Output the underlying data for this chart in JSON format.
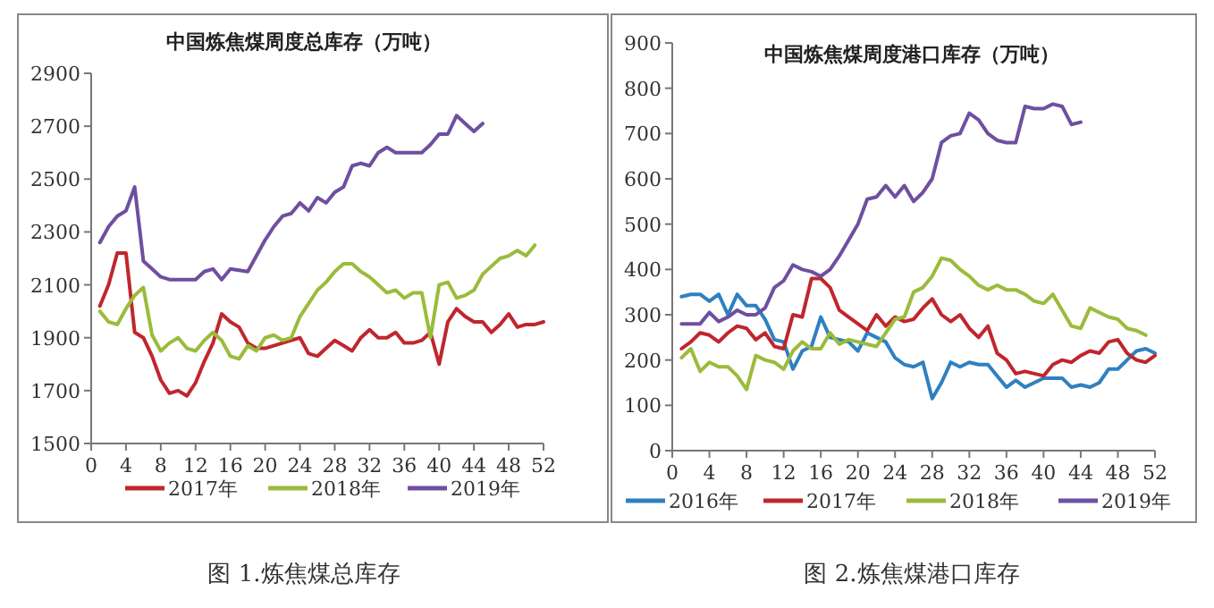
{
  "chart_data": [
    {
      "type": "line",
      "title": "中国炼焦煤周度总库存（万吨）",
      "x": [
        1,
        2,
        3,
        4,
        5,
        6,
        7,
        8,
        9,
        10,
        11,
        12,
        13,
        14,
        15,
        16,
        17,
        18,
        19,
        20,
        21,
        22,
        23,
        24,
        25,
        26,
        27,
        28,
        29,
        30,
        31,
        32,
        33,
        34,
        35,
        36,
        37,
        38,
        39,
        40,
        41,
        42,
        43,
        44,
        45,
        46,
        47,
        48,
        49,
        50,
        51,
        52
      ],
      "xlim": [
        0,
        52
      ],
      "xticks": [
        0,
        4,
        8,
        12,
        16,
        20,
        24,
        28,
        32,
        36,
        40,
        44,
        48,
        52
      ],
      "ylim": [
        1500,
        2900
      ],
      "yticks": [
        1500,
        1700,
        1900,
        2100,
        2300,
        2500,
        2700,
        2900
      ],
      "legend": "bottom",
      "marker": "none",
      "annotations": [
        "图 1.炼焦煤总库存"
      ],
      "series": [
        {
          "name": "2017年",
          "color": "#c0262d",
          "values": [
            2020,
            2100,
            2220,
            2220,
            1920,
            1900,
            1830,
            1740,
            1690,
            1700,
            1680,
            1730,
            1810,
            1880,
            1990,
            1960,
            1940,
            1880,
            1860,
            1860,
            1870,
            1880,
            1890,
            1900,
            1840,
            1830,
            1860,
            1890,
            1870,
            1850,
            1900,
            1930,
            1900,
            1900,
            1920,
            1880,
            1880,
            1890,
            1920,
            1800,
            1960,
            2010,
            1980,
            1960,
            1960,
            1920,
            1950,
            1990,
            1940,
            1950,
            1950,
            1960
          ]
        },
        {
          "name": "2018年",
          "color": "#9bbb3b",
          "values": [
            2000,
            1960,
            1950,
            2010,
            2060,
            2090,
            1910,
            1850,
            1880,
            1900,
            1860,
            1850,
            1890,
            1920,
            1890,
            1830,
            1820,
            1870,
            1850,
            1900,
            1910,
            1890,
            1900,
            1980,
            2030,
            2080,
            2110,
            2150,
            2180,
            2180,
            2150,
            2130,
            2100,
            2070,
            2080,
            2050,
            2070,
            2070,
            1900,
            2100,
            2110,
            2050,
            2060,
            2080,
            2140,
            2170,
            2200,
            2210,
            2230,
            2210,
            2250,
            null
          ]
        },
        {
          "name": "2019年",
          "color": "#6e4fa0",
          "values": [
            2260,
            2320,
            2360,
            2380,
            2470,
            2190,
            2160,
            2130,
            2120,
            2120,
            2120,
            2120,
            2150,
            2160,
            2120,
            2160,
            2155,
            2150,
            2210,
            2270,
            2320,
            2360,
            2370,
            2410,
            2380,
            2430,
            2410,
            2450,
            2470,
            2550,
            2560,
            2550,
            2600,
            2620,
            2600,
            2600,
            2600,
            2600,
            2630,
            2670,
            2670,
            2740,
            2710,
            2680,
            2710,
            null,
            null,
            null,
            null,
            null,
            null,
            null
          ]
        }
      ]
    },
    {
      "type": "line",
      "title": "中国炼焦煤周度港口库存（万吨）",
      "x": [
        1,
        2,
        3,
        4,
        5,
        6,
        7,
        8,
        9,
        10,
        11,
        12,
        13,
        14,
        15,
        16,
        17,
        18,
        19,
        20,
        21,
        22,
        23,
        24,
        25,
        26,
        27,
        28,
        29,
        30,
        31,
        32,
        33,
        34,
        35,
        36,
        37,
        38,
        39,
        40,
        41,
        42,
        43,
        44,
        45,
        46,
        47,
        48,
        49,
        50,
        51,
        52
      ],
      "xlim": [
        0,
        52
      ],
      "xticks": [
        0,
        4,
        8,
        12,
        16,
        20,
        24,
        28,
        32,
        36,
        40,
        44,
        48,
        52
      ],
      "ylim": [
        0,
        900
      ],
      "yticks": [
        0,
        100,
        200,
        300,
        400,
        500,
        600,
        700,
        800,
        900
      ],
      "legend": "bottom",
      "marker": "none",
      "annotations": [
        "图 2.炼焦煤港口库存"
      ],
      "series": [
        {
          "name": "2016年",
          "color": "#2f80c0",
          "values": [
            340,
            345,
            345,
            330,
            345,
            300,
            345,
            320,
            320,
            290,
            245,
            240,
            180,
            220,
            230,
            295,
            250,
            245,
            240,
            220,
            260,
            250,
            240,
            205,
            190,
            185,
            195,
            115,
            150,
            195,
            185,
            195,
            190,
            190,
            165,
            140,
            155,
            140,
            150,
            160,
            160,
            160,
            140,
            145,
            140,
            150,
            180,
            180,
            200,
            220,
            225,
            215
          ]
        },
        {
          "name": "2017年",
          "color": "#c0262d",
          "values": [
            225,
            240,
            260,
            255,
            240,
            260,
            275,
            270,
            245,
            260,
            230,
            225,
            300,
            295,
            380,
            380,
            360,
            310,
            295,
            280,
            265,
            300,
            275,
            295,
            285,
            290,
            315,
            335,
            300,
            285,
            300,
            270,
            250,
            275,
            215,
            200,
            170,
            175,
            170,
            165,
            190,
            200,
            195,
            210,
            220,
            215,
            240,
            245,
            215,
            200,
            195,
            210
          ]
        },
        {
          "name": "2018年",
          "color": "#9bbb3b",
          "values": [
            205,
            225,
            175,
            195,
            185,
            185,
            165,
            135,
            210,
            200,
            195,
            180,
            220,
            240,
            225,
            225,
            260,
            235,
            245,
            240,
            235,
            230,
            260,
            290,
            295,
            350,
            360,
            385,
            425,
            420,
            400,
            385,
            365,
            355,
            365,
            355,
            355,
            345,
            330,
            325,
            345,
            310,
            275,
            270,
            315,
            305,
            295,
            290,
            270,
            265,
            255,
            null
          ]
        },
        {
          "name": "2019年",
          "color": "#6e4fa0",
          "values": [
            280,
            280,
            280,
            305,
            285,
            295,
            310,
            300,
            300,
            315,
            360,
            375,
            410,
            400,
            395,
            385,
            400,
            430,
            465,
            500,
            555,
            560,
            585,
            560,
            585,
            550,
            570,
            600,
            680,
            695,
            700,
            745,
            730,
            700,
            685,
            680,
            680,
            760,
            755,
            755,
            765,
            760,
            720,
            725,
            null,
            null,
            null,
            null,
            null,
            null,
            null,
            null
          ]
        }
      ]
    }
  ]
}
